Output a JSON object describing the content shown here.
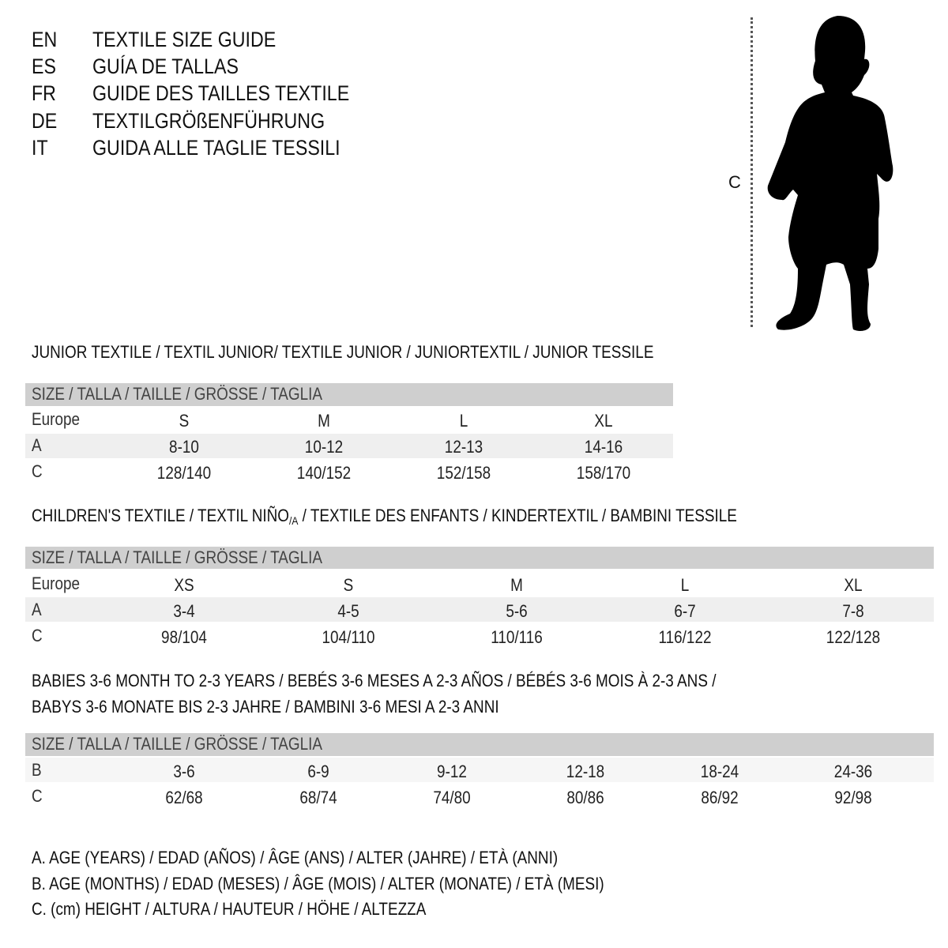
{
  "languages": [
    {
      "code": "EN",
      "title": "TEXTILE SIZE GUIDE"
    },
    {
      "code": "ES",
      "title": "GUÍA DE TALLAS"
    },
    {
      "code": "FR",
      "title": "GUIDE DES TAILLES TEXTILE"
    },
    {
      "code": "DE",
      "title": "TEXTILGRÖßENFÜHRUNG"
    },
    {
      "code": "IT",
      "title": "GUIDA ALLE TAGLIE TESSILI"
    }
  ],
  "figure": {
    "measure_label": "C",
    "icon": "child-silhouette-icon"
  },
  "junior": {
    "title": "JUNIOR TEXTILE / TEXTIL JUNIOR/ TEXTILE JUNIOR / JUNIORTEXTIL / JUNIOR TESSILE",
    "header": "SIZE / TALLA / TAILLE / GRÖSSE / TAGLIA",
    "rows": [
      {
        "label": "Europe",
        "values": [
          "S",
          "M",
          "L",
          "XL"
        ]
      },
      {
        "label": "A",
        "values": [
          "8-10",
          "10-12",
          "12-13",
          "14-16"
        ]
      },
      {
        "label": "C",
        "values": [
          "128/140",
          "140/152",
          "152/158",
          "158/170"
        ]
      }
    ]
  },
  "children": {
    "title_pre": "CHILDREN'S TEXTILE / TEXTIL NIÑO",
    "title_sub": "/A",
    "title_post": " / TEXTILE DES ENFANTS / KINDERTEXTIL / BAMBINI TESSILE",
    "header": "SIZE / TALLA / TAILLE / GRÖSSE / TAGLIA",
    "rows": [
      {
        "label": "Europe",
        "values": [
          "XS",
          "S",
          "M",
          "L",
          "XL"
        ]
      },
      {
        "label": "A",
        "values": [
          "3-4",
          "4-5",
          "5-6",
          "6-7",
          "7-8"
        ]
      },
      {
        "label": "C",
        "values": [
          "98/104",
          "104/110",
          "110/116",
          "116/122",
          "122/128"
        ]
      }
    ]
  },
  "babies": {
    "title_line1": "BABIES 3-6 MONTH TO 2-3 YEARS / BEBÉS 3-6 MESES A 2-3 AÑOS / BÉBÉS 3-6 MOIS À 2-3 ANS /",
    "title_line2": "BABYS 3-6 MONATE BIS 2-3 JAHRE / BAMBINI 3-6 MESI A 2-3 ANNI",
    "header": "SIZE / TALLA / TAILLE / GRÖSSE / TAGLIA",
    "rows": [
      {
        "label": "B",
        "values": [
          "3-6",
          "6-9",
          "9-12",
          "12-18",
          "18-24",
          "24-36"
        ]
      },
      {
        "label": "C",
        "values": [
          "62/68",
          "68/74",
          "74/80",
          "80/86",
          "86/92",
          "92/98"
        ]
      }
    ]
  },
  "legend": [
    "A. AGE (YEARS) / EDAD (AÑOS) / ÂGE (ANS) / ALTER (JAHRE) / ETÀ (ANNI)",
    "B. AGE (MONTHS) / EDAD (MESES) / ÂGE (MOIS) / ALTER (MONATE) / ETÀ (MESI)",
    "C. (cm) HEIGHT / ALTURA / HAUTEUR / HÖHE / ALTEZZA"
  ]
}
